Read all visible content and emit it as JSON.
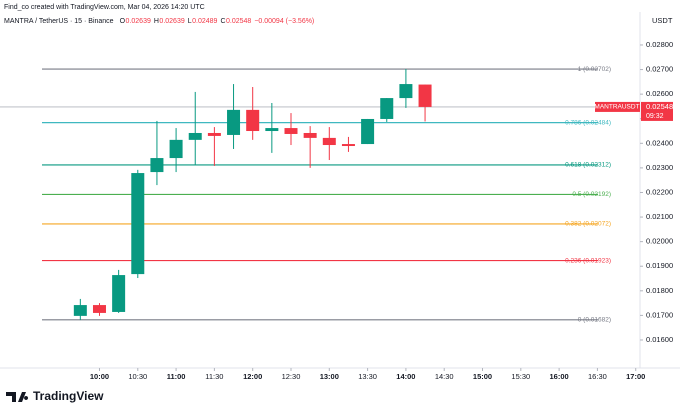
{
  "header": {
    "credit": "Find_co created with TradingView.com, Mar 04, 2026 14:20 UTC",
    "symbol": "MANTRA / TetherUS · 15 · Binance",
    "ohlc": [
      {
        "key": "O",
        "value": "0.02639"
      },
      {
        "key": "H",
        "value": "0.02639"
      },
      {
        "key": "L",
        "value": "0.02489"
      },
      {
        "key": "C",
        "value": "0.02548"
      }
    ],
    "change": "−0.00094 (−3.56%)",
    "currency": "USDT"
  },
  "chart_data": {
    "type": "candlestick",
    "x": [
      585,
      600,
      615,
      630,
      645,
      660,
      675,
      690,
      705,
      720,
      735,
      750,
      765,
      780,
      795,
      810,
      825,
      840,
      855
    ],
    "open": [
      0.01698,
      0.01742,
      0.01714,
      0.01868,
      0.02283,
      0.0234,
      0.02414,
      0.02442,
      0.02434,
      0.02536,
      0.0245,
      0.02462,
      0.02442,
      0.02422,
      0.02397,
      0.02397,
      0.02499,
      0.02584,
      0.02639
    ],
    "high": [
      0.01767,
      0.0175,
      0.01885,
      0.02292,
      0.02491,
      0.02462,
      0.02609,
      0.02466,
      0.02641,
      0.02629,
      0.02564,
      0.02523,
      0.0247,
      0.02466,
      0.02426,
      0.02499,
      0.02584,
      0.02702,
      0.02639
    ],
    "low": [
      0.01681,
      0.01698,
      0.0171,
      0.01852,
      0.0223,
      0.02283,
      0.02312,
      0.02308,
      0.02377,
      0.02414,
      0.02361,
      0.02393,
      0.023,
      0.02332,
      0.02365,
      0.02397,
      0.02487,
      0.02544,
      0.02489
    ],
    "close": [
      0.01742,
      0.0171,
      0.01864,
      0.02279,
      0.0234,
      0.02414,
      0.02442,
      0.0243,
      0.02536,
      0.0245,
      0.02462,
      0.02438,
      0.02422,
      0.02393,
      0.02389,
      0.02499,
      0.02584,
      0.02641,
      0.02548
    ],
    "up_color": "#089981",
    "down_color": "#f23645",
    "xlim": [
      526,
      1021
    ],
    "xticks": [
      {
        "value": 600,
        "label": "10:00"
      },
      {
        "value": 630,
        "label": "10:30"
      },
      {
        "value": 660,
        "label": "11:00"
      },
      {
        "value": 690,
        "label": "11:30"
      },
      {
        "value": 720,
        "label": "12:00"
      },
      {
        "value": 750,
        "label": "12:30"
      },
      {
        "value": 780,
        "label": "13:00"
      },
      {
        "value": 810,
        "label": "13:30"
      },
      {
        "value": 840,
        "label": "14:00"
      },
      {
        "value": 870,
        "label": "14:30"
      },
      {
        "value": 900,
        "label": "15:00"
      },
      {
        "value": 930,
        "label": "15:30"
      },
      {
        "value": 960,
        "label": "16:00"
      },
      {
        "value": 990,
        "label": "16:30"
      },
      {
        "value": 1020,
        "label": "17:00"
      }
    ],
    "ylim": [
      0.01486,
      0.02926
    ],
    "yticks": [
      {
        "value": 0.016,
        "label": "0.01600"
      },
      {
        "value": 0.017,
        "label": "0.01700"
      },
      {
        "value": 0.018,
        "label": "0.01800"
      },
      {
        "value": 0.019,
        "label": "0.01900"
      },
      {
        "value": 0.02,
        "label": "0.02000"
      },
      {
        "value": 0.021,
        "label": "0.02100"
      },
      {
        "value": 0.022,
        "label": "0.02200"
      },
      {
        "value": 0.023,
        "label": "0.02300"
      },
      {
        "value": 0.024,
        "label": "0.02400"
      },
      {
        "value": 0.025,
        "label": "0.02500"
      },
      {
        "value": 0.026,
        "label": "0.02600"
      },
      {
        "value": 0.027,
        "label": "0.02700"
      },
      {
        "value": 0.028,
        "label": "0.02800"
      }
    ],
    "grid": false,
    "fib_levels": [
      {
        "value": 0.02702,
        "label": "1 (0.02702)",
        "color": "#787b86"
      },
      {
        "value": 0.02484,
        "label": "0.786 (0.02484)",
        "color": "#3fb8c0"
      },
      {
        "value": 0.02312,
        "label": "0.618 (0.02312)",
        "color": "#089981"
      },
      {
        "value": 0.02192,
        "label": "0.5 (0.02192)",
        "color": "#4caf50"
      },
      {
        "value": 0.02072,
        "label": "0.382 (0.02072)",
        "color": "#f5a623"
      },
      {
        "value": 0.01923,
        "label": "0.236 (0.01923)",
        "color": "#f23645"
      },
      {
        "value": 0.01682,
        "label": "0 (0.01682)",
        "color": "#787b86"
      }
    ],
    "last_price": {
      "symbol": "MANTRAUSDT",
      "value": 0.02548,
      "countdown": "09:32",
      "color": "#f23645"
    }
  },
  "footer": {
    "brand": "TradingView"
  }
}
